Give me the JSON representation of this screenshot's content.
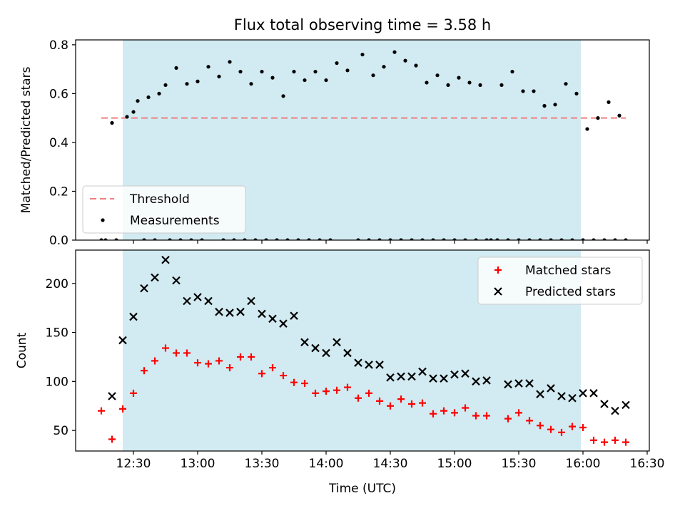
{
  "figure": {
    "title": "Flux total observing time = 3.58 h",
    "xlabel": "Time (UTC)"
  },
  "chart_data": [
    {
      "type": "scatter",
      "panel": "top",
      "ylabel": "Matched/Predicted stars",
      "xlim": [
        "12:03",
        "16:31"
      ],
      "ylim": [
        0,
        0.82
      ],
      "x_ticks": [
        "12:30",
        "13:00",
        "13:30",
        "14:00",
        "14:30",
        "15:00",
        "15:30",
        "16:00",
        "16:30"
      ],
      "y_ticks": [
        "0.0",
        "0.2",
        "0.4",
        "0.6",
        "0.8"
      ],
      "shaded_interval": [
        "12:25",
        "15:59"
      ],
      "shade_color": "#add8e6",
      "threshold": {
        "name": "Threshold",
        "y": 0.5,
        "x_range": [
          "12:15",
          "16:20"
        ],
        "color": "#f08080"
      },
      "legend": {
        "placement": "lower-left",
        "entries": [
          "Threshold",
          "Measurements"
        ]
      },
      "series": [
        {
          "name": "Measurements",
          "color": "#000000",
          "marker": "dot",
          "x": [
            "12:15",
            "12:17",
            "12:20",
            "12:22",
            "12:27",
            "12:30",
            "12:32",
            "12:35",
            "12:37",
            "12:40",
            "12:42",
            "12:45",
            "12:47",
            "12:50",
            "12:52",
            "12:55",
            "12:57",
            "13:00",
            "13:02",
            "13:05",
            "13:10",
            "13:12",
            "13:15",
            "13:17",
            "13:20",
            "13:22",
            "13:25",
            "13:27",
            "13:30",
            "13:32",
            "13:35",
            "13:37",
            "13:40",
            "13:42",
            "13:45",
            "13:47",
            "13:50",
            "13:52",
            "13:55",
            "13:57",
            "14:00",
            "14:02",
            "14:05",
            "14:10",
            "14:15",
            "14:17",
            "14:20",
            "14:22",
            "14:25",
            "14:27",
            "14:30",
            "14:32",
            "14:35",
            "14:37",
            "14:40",
            "14:42",
            "14:45",
            "14:47",
            "14:50",
            "14:52",
            "14:55",
            "14:57",
            "15:00",
            "15:02",
            "15:05",
            "15:07",
            "15:10",
            "15:12",
            "15:15",
            "15:17",
            "15:20",
            "15:22",
            "15:25",
            "15:27",
            "15:30",
            "15:32",
            "15:35",
            "15:37",
            "15:40",
            "15:42",
            "15:45",
            "15:47",
            "15:50",
            "15:52",
            "15:55",
            "15:57",
            "16:00",
            "16:02",
            "16:05",
            "16:07",
            "16:10",
            "16:12",
            "16:15",
            "16:17",
            "16:20"
          ],
          "y": [
            0.0,
            0.0,
            0.48,
            0.0,
            0.505,
            0.525,
            0.57,
            0.0,
            0.585,
            0.0,
            0.6,
            0.635,
            0.0,
            0.705,
            0.0,
            0.64,
            0.0,
            0.65,
            0.0,
            0.71,
            0.67,
            0.0,
            0.73,
            0.0,
            0.69,
            0.0,
            0.64,
            0.0,
            0.69,
            0.0,
            0.665,
            0.0,
            0.59,
            0.0,
            0.69,
            0.0,
            0.655,
            0.0,
            0.69,
            0.0,
            0.655,
            0.0,
            0.725,
            0.695,
            0.0,
            0.76,
            0.0,
            0.675,
            0.0,
            0.71,
            0.0,
            0.77,
            0.0,
            0.735,
            0.0,
            0.715,
            0.0,
            0.645,
            0.0,
            0.675,
            0.0,
            0.635,
            0.0,
            0.665,
            0.0,
            0.645,
            0.0,
            0.635,
            0.0,
            0.0,
            0.0,
            0.635,
            0.0,
            0.69,
            0.0,
            0.61,
            0.0,
            0.61,
            0.0,
            0.55,
            0.0,
            0.555,
            0.0,
            0.64,
            0.0,
            0.6,
            0.0,
            0.455,
            0.0,
            0.5,
            0.0,
            0.565,
            0.0,
            0.51,
            0.0
          ]
        }
      ]
    },
    {
      "type": "scatter",
      "panel": "bottom",
      "ylabel": "Count",
      "xlim": [
        "12:03",
        "16:31"
      ],
      "ylim": [
        29,
        234
      ],
      "x_ticks": [
        "12:30",
        "13:00",
        "13:30",
        "14:00",
        "14:30",
        "15:00",
        "15:30",
        "16:00",
        "16:30"
      ],
      "y_ticks": [
        "50",
        "100",
        "150",
        "200"
      ],
      "shaded_interval": [
        "12:25",
        "15:59"
      ],
      "shade_color": "#add8e6",
      "legend": {
        "placement": "upper-right",
        "entries": [
          "Matched stars",
          "Predicted stars"
        ]
      },
      "series": [
        {
          "name": "Matched stars",
          "color": "#ff0000",
          "marker": "plus",
          "x": [
            "12:15",
            "12:20",
            "12:25",
            "12:30",
            "12:35",
            "12:40",
            "12:45",
            "12:50",
            "12:55",
            "13:00",
            "13:05",
            "13:10",
            "13:15",
            "13:20",
            "13:25",
            "13:30",
            "13:35",
            "13:40",
            "13:45",
            "13:50",
            "13:55",
            "14:00",
            "14:05",
            "14:10",
            "14:15",
            "14:20",
            "14:25",
            "14:30",
            "14:35",
            "14:40",
            "14:45",
            "14:50",
            "14:55",
            "15:00",
            "15:05",
            "15:10",
            "15:15",
            "15:25",
            "15:30",
            "15:35",
            "15:40",
            "15:45",
            "15:50",
            "15:55",
            "16:00",
            "16:05",
            "16:10",
            "16:15",
            "16:20"
          ],
          "y": [
            70,
            41,
            72,
            88,
            111,
            121,
            134,
            129,
            129,
            119,
            118,
            121,
            114,
            125,
            125,
            108,
            114,
            106,
            99,
            98,
            88,
            90,
            91,
            94,
            83,
            88,
            80,
            75,
            82,
            77,
            78,
            67,
            70,
            68,
            73,
            65,
            65,
            62,
            68,
            60,
            55,
            51,
            48,
            54,
            53,
            40,
            38,
            40,
            38
          ]
        },
        {
          "name": "Predicted stars",
          "color": "#000000",
          "marker": "x",
          "x": [
            "12:20",
            "12:25",
            "12:30",
            "12:35",
            "12:40",
            "12:45",
            "12:50",
            "12:55",
            "13:00",
            "13:05",
            "13:10",
            "13:15",
            "13:20",
            "13:25",
            "13:30",
            "13:35",
            "13:40",
            "13:45",
            "13:50",
            "13:55",
            "14:00",
            "14:05",
            "14:10",
            "14:15",
            "14:20",
            "14:25",
            "14:30",
            "14:35",
            "14:40",
            "14:45",
            "14:50",
            "14:55",
            "15:00",
            "15:05",
            "15:10",
            "15:15",
            "15:25",
            "15:30",
            "15:35",
            "15:40",
            "15:45",
            "15:50",
            "15:55",
            "16:00",
            "16:05",
            "16:10",
            "16:15",
            "16:20"
          ],
          "y": [
            85,
            142,
            166,
            195,
            206,
            224,
            203,
            182,
            186,
            182,
            171,
            170,
            171,
            182,
            169,
            164,
            159,
            167,
            140,
            134,
            129,
            140,
            129,
            119,
            117,
            117,
            104,
            105,
            105,
            110,
            103,
            103,
            107,
            108,
            100,
            101,
            97,
            98,
            98,
            87,
            93,
            85,
            83,
            88,
            88,
            77,
            70,
            76
          ]
        }
      ]
    }
  ]
}
